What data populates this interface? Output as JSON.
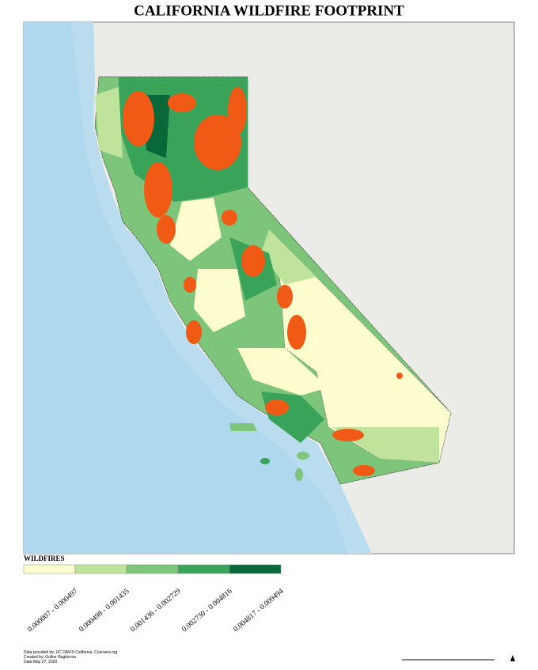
{
  "title": "CALIFORNIA WILDFIRE FOOTPRINT",
  "legend": {
    "title": "WILDFIRES",
    "classes": [
      {
        "label": "0.000007 - 0.000497",
        "color": "#fdfdd0"
      },
      {
        "label": "0.000498 - 0.001435",
        "color": "#bfe39a"
      },
      {
        "label": "0.001436 - 0.002729",
        "color": "#7dc57a"
      },
      {
        "label": "0.002730 - 0.004816",
        "color": "#3aa35a"
      },
      {
        "label": "0.004817 - 0.009494",
        "color": "#08683a"
      }
    ]
  },
  "credits": [
    "Data provided by: UC DAVIS California, Coursera.org",
    "Created by: Gulkor Baghirova",
    "Date:May 27, 2020"
  ]
}
